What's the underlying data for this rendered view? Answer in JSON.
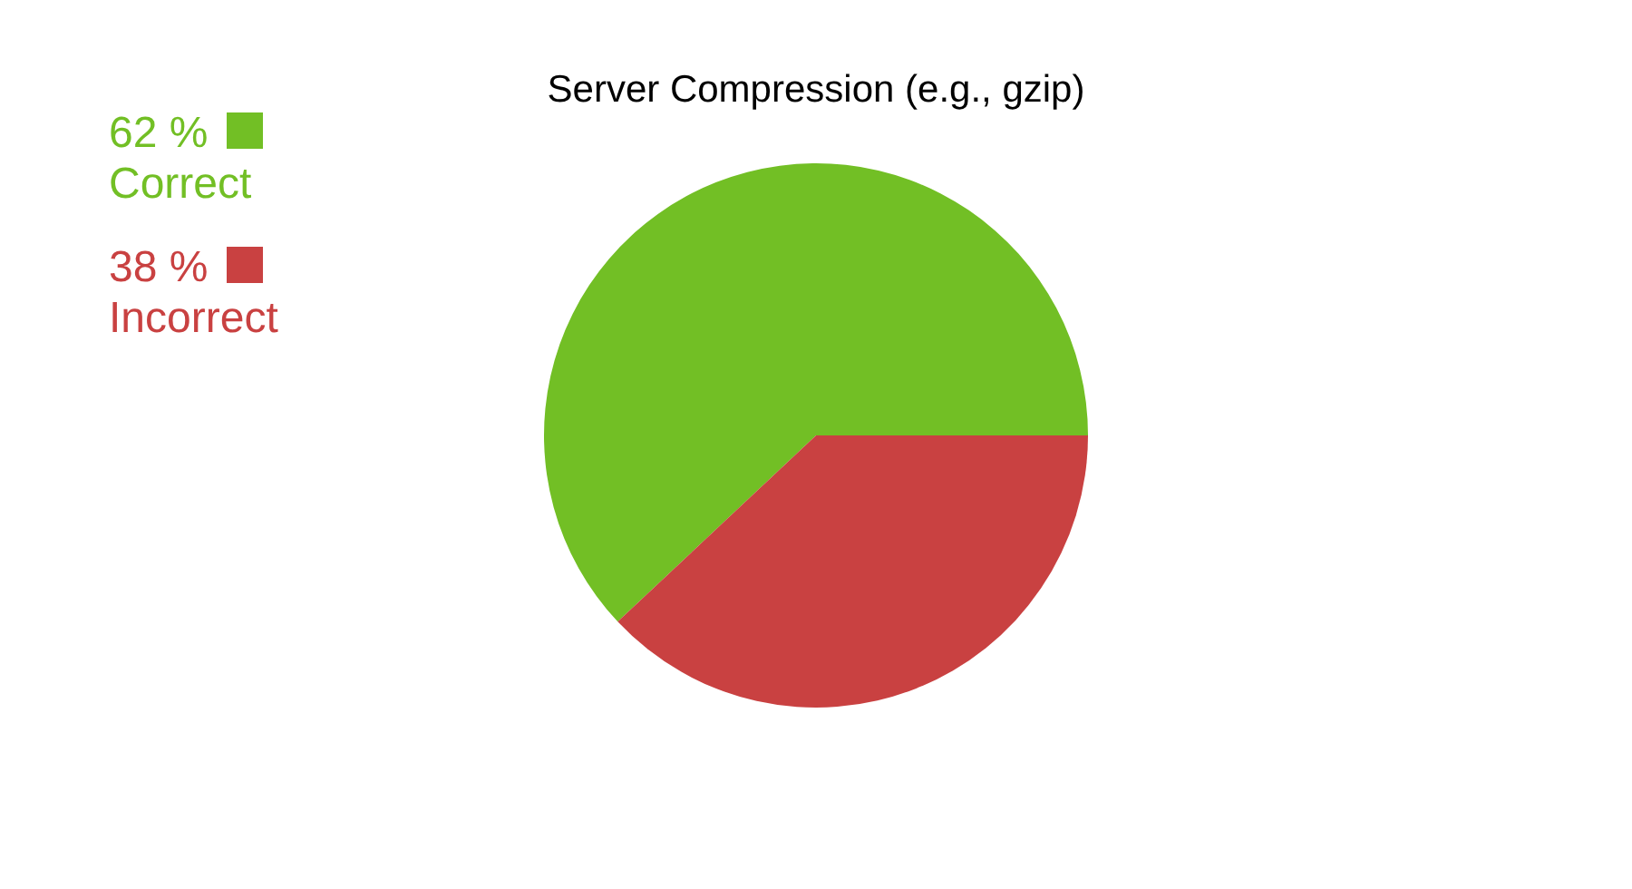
{
  "chart_data": {
    "type": "pie",
    "title": "Server Compression (e.g., gzip)",
    "categories": [
      "Correct",
      "Incorrect"
    ],
    "values": [
      62,
      38
    ],
    "colors": [
      "#72bf25",
      "#c94141"
    ],
    "value_labels": [
      "62 %",
      "38 %"
    ],
    "legend": "top left"
  }
}
